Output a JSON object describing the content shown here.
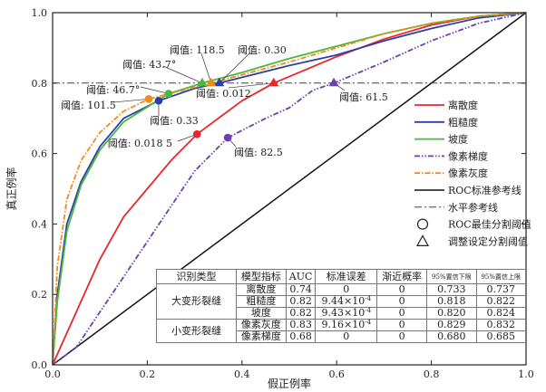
{
  "chart_data": {
    "type": "line",
    "xlabel": "假正例率",
    "ylabel": "真正例率",
    "xlim": [
      0,
      1
    ],
    "ylim": [
      0,
      1
    ],
    "xticks": [
      "0.0",
      "0.2",
      "0.4",
      "0.6",
      "0.8",
      "1.0"
    ],
    "yticks": [
      "0.0",
      "0.2",
      "0.4",
      "0.6",
      "0.8",
      "1.0"
    ],
    "legend_position": "right",
    "series": [
      {
        "name": "离散度",
        "color": "#e8262b",
        "dash": "",
        "points": [
          [
            0,
            0
          ],
          [
            0.05,
            0.15
          ],
          [
            0.1,
            0.3
          ],
          [
            0.15,
            0.42
          ],
          [
            0.2,
            0.5
          ],
          [
            0.25,
            0.58
          ],
          [
            0.305,
            0.655
          ],
          [
            0.4,
            0.75
          ],
          [
            0.467,
            0.8
          ],
          [
            0.6,
            0.875
          ],
          [
            0.7,
            0.925
          ],
          [
            0.8,
            0.965
          ],
          [
            0.9,
            0.99
          ],
          [
            1,
            1
          ]
        ]
      },
      {
        "name": "粗糙度",
        "color": "#2a3fa8",
        "dash": "",
        "points": [
          [
            0,
            0
          ],
          [
            0.01,
            0.2
          ],
          [
            0.03,
            0.4
          ],
          [
            0.06,
            0.52
          ],
          [
            0.1,
            0.62
          ],
          [
            0.15,
            0.7
          ],
          [
            0.224,
            0.75
          ],
          [
            0.3,
            0.785
          ],
          [
            0.352,
            0.8
          ],
          [
            0.5,
            0.85
          ],
          [
            0.6,
            0.88
          ],
          [
            0.7,
            0.92
          ],
          [
            0.8,
            0.955
          ],
          [
            0.9,
            0.985
          ],
          [
            1,
            1
          ]
        ]
      },
      {
        "name": "坡度",
        "color": "#4cb83a",
        "dash": "",
        "points": [
          [
            0,
            0
          ],
          [
            0.01,
            0.18
          ],
          [
            0.03,
            0.38
          ],
          [
            0.06,
            0.51
          ],
          [
            0.1,
            0.61
          ],
          [
            0.15,
            0.69
          ],
          [
            0.245,
            0.77
          ],
          [
            0.316,
            0.8
          ],
          [
            0.4,
            0.83
          ],
          [
            0.5,
            0.87
          ],
          [
            0.6,
            0.905
          ],
          [
            0.7,
            0.94
          ],
          [
            0.8,
            0.97
          ],
          [
            0.9,
            0.99
          ],
          [
            1,
            1
          ]
        ]
      },
      {
        "name": "像素梯度",
        "color": "#6a3fb0",
        "dash": "6,2,1.5,2,1.5,2",
        "points": [
          [
            0,
            0
          ],
          [
            0.05,
            0.05
          ],
          [
            0.1,
            0.15
          ],
          [
            0.15,
            0.25
          ],
          [
            0.2,
            0.35
          ],
          [
            0.25,
            0.45
          ],
          [
            0.3,
            0.55
          ],
          [
            0.37,
            0.645
          ],
          [
            0.45,
            0.7
          ],
          [
            0.5,
            0.73
          ],
          [
            0.55,
            0.78
          ],
          [
            0.594,
            0.8
          ],
          [
            0.7,
            0.86
          ],
          [
            0.8,
            0.92
          ],
          [
            0.9,
            0.97
          ],
          [
            1,
            1
          ]
        ]
      },
      {
        "name": "像素灰度",
        "color": "#f08a1c",
        "dash": "6,2,1.5,2",
        "points": [
          [
            0,
            0
          ],
          [
            0.01,
            0.28
          ],
          [
            0.03,
            0.47
          ],
          [
            0.06,
            0.58
          ],
          [
            0.1,
            0.66
          ],
          [
            0.15,
            0.72
          ],
          [
            0.203,
            0.755
          ],
          [
            0.335,
            0.8
          ],
          [
            0.5,
            0.86
          ],
          [
            0.6,
            0.9
          ],
          [
            0.7,
            0.94
          ],
          [
            0.8,
            0.97
          ],
          [
            0.9,
            0.99
          ],
          [
            1,
            1
          ]
        ]
      }
    ],
    "reference_lines": [
      {
        "name": "ROC标准参考线",
        "color": "#111111",
        "points": [
          [
            0,
            0
          ],
          [
            1,
            1
          ]
        ]
      },
      {
        "name": "水平参考线",
        "color": "#444444",
        "y": 0.8
      }
    ],
    "markers": [
      {
        "series": 0,
        "shape": "circle",
        "x": 0.305,
        "y": 0.655,
        "label": "阈值: 0.018 5"
      },
      {
        "series": 1,
        "shape": "circle",
        "x": 0.224,
        "y": 0.75,
        "label": "阈值: 0.33"
      },
      {
        "series": 2,
        "shape": "circle",
        "x": 0.245,
        "y": 0.77,
        "label": "阈值: 46.7°"
      },
      {
        "series": 3,
        "shape": "circle",
        "x": 0.37,
        "y": 0.645,
        "label": "阈值: 82.5"
      },
      {
        "series": 4,
        "shape": "circle",
        "x": 0.203,
        "y": 0.755,
        "label": "阈值: 101.5"
      },
      {
        "series": 0,
        "shape": "triangle",
        "x": 0.467,
        "y": 0.8,
        "label": "阈值: 0.012"
      },
      {
        "series": 1,
        "shape": "triangle",
        "x": 0.352,
        "y": 0.8,
        "label": "阈值: 0.30"
      },
      {
        "series": 2,
        "shape": "triangle",
        "x": 0.316,
        "y": 0.8,
        "label": "阈值: 43.7°"
      },
      {
        "series": 3,
        "shape": "triangle",
        "x": 0.594,
        "y": 0.8,
        "label": "阈值: 61.5"
      },
      {
        "series": 4,
        "shape": "triangle",
        "x": 0.335,
        "y": 0.8,
        "label": "阈值: 118.5"
      }
    ],
    "legend_extra": [
      "ROC最佳分割阈值",
      "调整设定分割阈值"
    ]
  },
  "table": {
    "headers": [
      "识别类型",
      "模型指标",
      "AUC",
      "标准误差",
      "渐近概率",
      "95%置信下限",
      "95%置信上限"
    ],
    "groups": [
      "大变形裂缝",
      "小变形裂缝"
    ],
    "rows": [
      {
        "model": "离散度",
        "auc": "0.74",
        "se": "0",
        "se_exp": "",
        "p": "0",
        "lo": "0.733",
        "hi": "0.737"
      },
      {
        "model": "粗糙度",
        "auc": "0.82",
        "se": "9.44×10",
        "se_exp": "-4",
        "p": "0",
        "lo": "0.818",
        "hi": "0.822"
      },
      {
        "model": "坡度",
        "auc": "0.82",
        "se": "9.43×10",
        "se_exp": "-4",
        "p": "0",
        "lo": "0.820",
        "hi": "0.824"
      },
      {
        "model": "像素灰度",
        "auc": "0.83",
        "se": "9.16×10",
        "se_exp": "-4",
        "p": "0",
        "lo": "0.829",
        "hi": "0.832"
      },
      {
        "model": "像素梯度",
        "auc": "0.68",
        "se": "0",
        "se_exp": "",
        "p": "0",
        "lo": "0.680",
        "hi": "0.685"
      }
    ]
  }
}
